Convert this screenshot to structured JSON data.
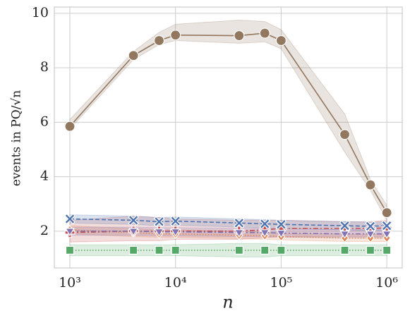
{
  "chart_data": {
    "type": "line",
    "x_label": "n",
    "y_label": "events in PQ/√n",
    "xscale": "log",
    "grid": true,
    "x": [
      1000,
      4000,
      7000,
      10000,
      40000,
      70000,
      100000,
      400000,
      700000,
      1000000
    ],
    "xlim": [
      713,
      1400000
    ],
    "xticks": [
      {
        "value": 1000,
        "label": "10³"
      },
      {
        "value": 10000,
        "label": "10⁴"
      },
      {
        "value": 100000,
        "label": "10⁵"
      },
      {
        "value": 1000000,
        "label": "10⁶"
      }
    ],
    "ylim": [
      0.65,
      10.23
    ],
    "yticks": [
      2,
      4,
      6,
      8,
      10
    ],
    "series": [
      {
        "color": "#937860",
        "marker": "circle",
        "dash": "solid",
        "values": [
          5.85,
          8.45,
          9.0,
          9.2,
          9.18,
          9.27,
          9.0,
          5.55,
          3.7,
          2.68
        ],
        "lower": [
          5.75,
          8.3,
          8.85,
          9.0,
          8.9,
          8.95,
          8.7,
          4.9,
          3.5,
          2.4
        ],
        "upper": [
          6.1,
          8.6,
          9.3,
          9.6,
          9.75,
          9.7,
          9.4,
          6.3,
          3.9,
          2.95
        ]
      },
      {
        "color": "#c44e52",
        "marker": "plus",
        "dash": "dashdot",
        "values": [
          1.95,
          2.0,
          2.0,
          2.0,
          2.0,
          2.05,
          2.1,
          2.1,
          2.1,
          2.12
        ],
        "lower": [
          1.6,
          1.65,
          1.65,
          1.7,
          1.7,
          1.75,
          1.8,
          1.8,
          1.8,
          1.8
        ],
        "upper": [
          2.4,
          2.55,
          2.5,
          2.45,
          2.4,
          2.4,
          2.4,
          2.35,
          2.35,
          2.4
        ]
      },
      {
        "color": "#55a868",
        "marker": "square",
        "dash": "dotted",
        "values": [
          1.3,
          1.3,
          1.3,
          1.3,
          1.3,
          1.3,
          1.3,
          1.3,
          1.3,
          1.3
        ],
        "lower": [
          1.1,
          1.1,
          1.1,
          1.1,
          1.05,
          1.05,
          1.1,
          1.1,
          1.1,
          1.1
        ],
        "upper": [
          1.5,
          1.5,
          1.5,
          1.5,
          1.55,
          1.55,
          1.5,
          1.5,
          1.5,
          1.5
        ]
      },
      {
        "color": "#dd8452",
        "marker": "diamond",
        "dash": "dotted",
        "values": [
          2.05,
          1.95,
          1.9,
          1.9,
          1.85,
          1.83,
          1.8,
          1.75,
          1.75,
          1.75
        ],
        "lower": [
          1.9,
          1.8,
          1.78,
          1.78,
          1.72,
          1.7,
          1.68,
          1.62,
          1.62,
          1.62
        ],
        "upper": [
          2.2,
          2.1,
          2.05,
          2.05,
          2.0,
          1.97,
          1.93,
          1.9,
          1.88,
          1.88
        ]
      },
      {
        "color": "#8172b3",
        "marker": "triangle",
        "dash": "dashdot",
        "values": [
          2.0,
          2.0,
          1.98,
          1.98,
          1.95,
          1.95,
          1.93,
          1.9,
          1.9,
          1.9
        ],
        "lower": [
          1.85,
          1.85,
          1.83,
          1.83,
          1.8,
          1.8,
          1.78,
          1.75,
          1.75,
          1.75
        ],
        "upper": [
          2.15,
          2.15,
          2.13,
          2.13,
          2.1,
          2.1,
          2.08,
          2.05,
          2.05,
          2.05
        ]
      },
      {
        "color": "#4c72b0",
        "marker": "x",
        "dash": "dashed",
        "values": [
          2.45,
          2.4,
          2.35,
          2.37,
          2.3,
          2.27,
          2.25,
          2.2,
          2.18,
          2.2
        ],
        "lower": [
          2.3,
          2.25,
          2.2,
          2.22,
          2.15,
          2.12,
          2.1,
          2.05,
          2.03,
          2.05
        ],
        "upper": [
          2.6,
          2.55,
          2.5,
          2.52,
          2.45,
          2.42,
          2.4,
          2.35,
          2.33,
          2.35
        ]
      }
    ]
  }
}
